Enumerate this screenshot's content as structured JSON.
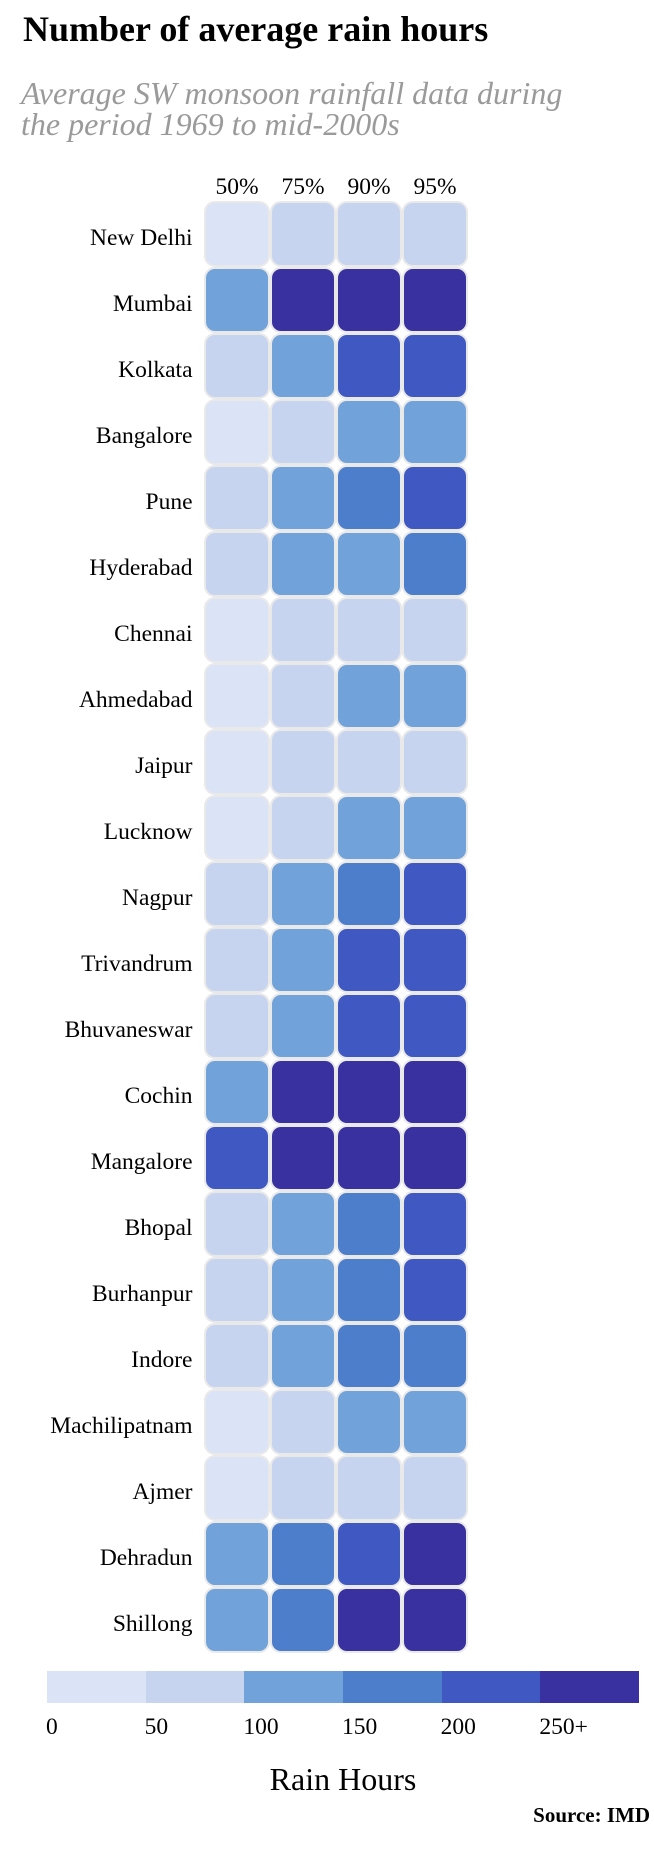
{
  "title": "Number of average rain hours",
  "subtitle_line1": "Average SW monsoon rainfall data during",
  "subtitle_line2": "the period 1969 to mid-2000s",
  "source": "Source: IMD",
  "chart_data": {
    "type": "heatmap",
    "title": "Number of average rain hours",
    "subtitle": "Average SW monsoon rainfall data during the period 1969 to mid-2000s",
    "xlabel": "Rain Hours",
    "columns": [
      "50%",
      "75%",
      "90%",
      "95%"
    ],
    "rows": [
      "New Delhi",
      "Mumbai",
      "Kolkata",
      "Bangalore",
      "Pune",
      "Hyderabad",
      "Chennai",
      "Ahmedabad",
      "Jaipur",
      "Lucknow",
      "Nagpur",
      "Trivandrum",
      "Bhuvaneswar",
      "Cochin",
      "Mangalore",
      "Bhopal",
      "Burhanpur",
      "Indore",
      "Machilipatnam",
      "Ajmer",
      "Dehradun",
      "Shillong"
    ],
    "values": [
      [
        25,
        75,
        75,
        75
      ],
      [
        125,
        275,
        275,
        275
      ],
      [
        75,
        125,
        225,
        225
      ],
      [
        25,
        75,
        125,
        125
      ],
      [
        75,
        125,
        175,
        225
      ],
      [
        75,
        125,
        125,
        175
      ],
      [
        25,
        75,
        75,
        75
      ],
      [
        25,
        75,
        125,
        125
      ],
      [
        25,
        75,
        75,
        75
      ],
      [
        25,
        75,
        125,
        125
      ],
      [
        75,
        125,
        175,
        225
      ],
      [
        75,
        125,
        225,
        225
      ],
      [
        75,
        125,
        225,
        225
      ],
      [
        125,
        275,
        275,
        275
      ],
      [
        225,
        275,
        275,
        275
      ],
      [
        75,
        125,
        175,
        225
      ],
      [
        75,
        125,
        175,
        225
      ],
      [
        75,
        125,
        175,
        175
      ],
      [
        25,
        75,
        125,
        125
      ],
      [
        25,
        75,
        75,
        75
      ],
      [
        125,
        175,
        225,
        275
      ],
      [
        125,
        175,
        275,
        275
      ]
    ],
    "legend": {
      "labels": [
        "0",
        "50",
        "100",
        "150",
        "200",
        "250+"
      ],
      "thresholds": [
        0,
        50,
        100,
        150,
        200,
        250
      ],
      "colors": [
        "#dbe3f6",
        "#c7d4f0",
        "#72a2da",
        "#4d7ecb",
        "#4058c2",
        "#38319f"
      ]
    }
  }
}
